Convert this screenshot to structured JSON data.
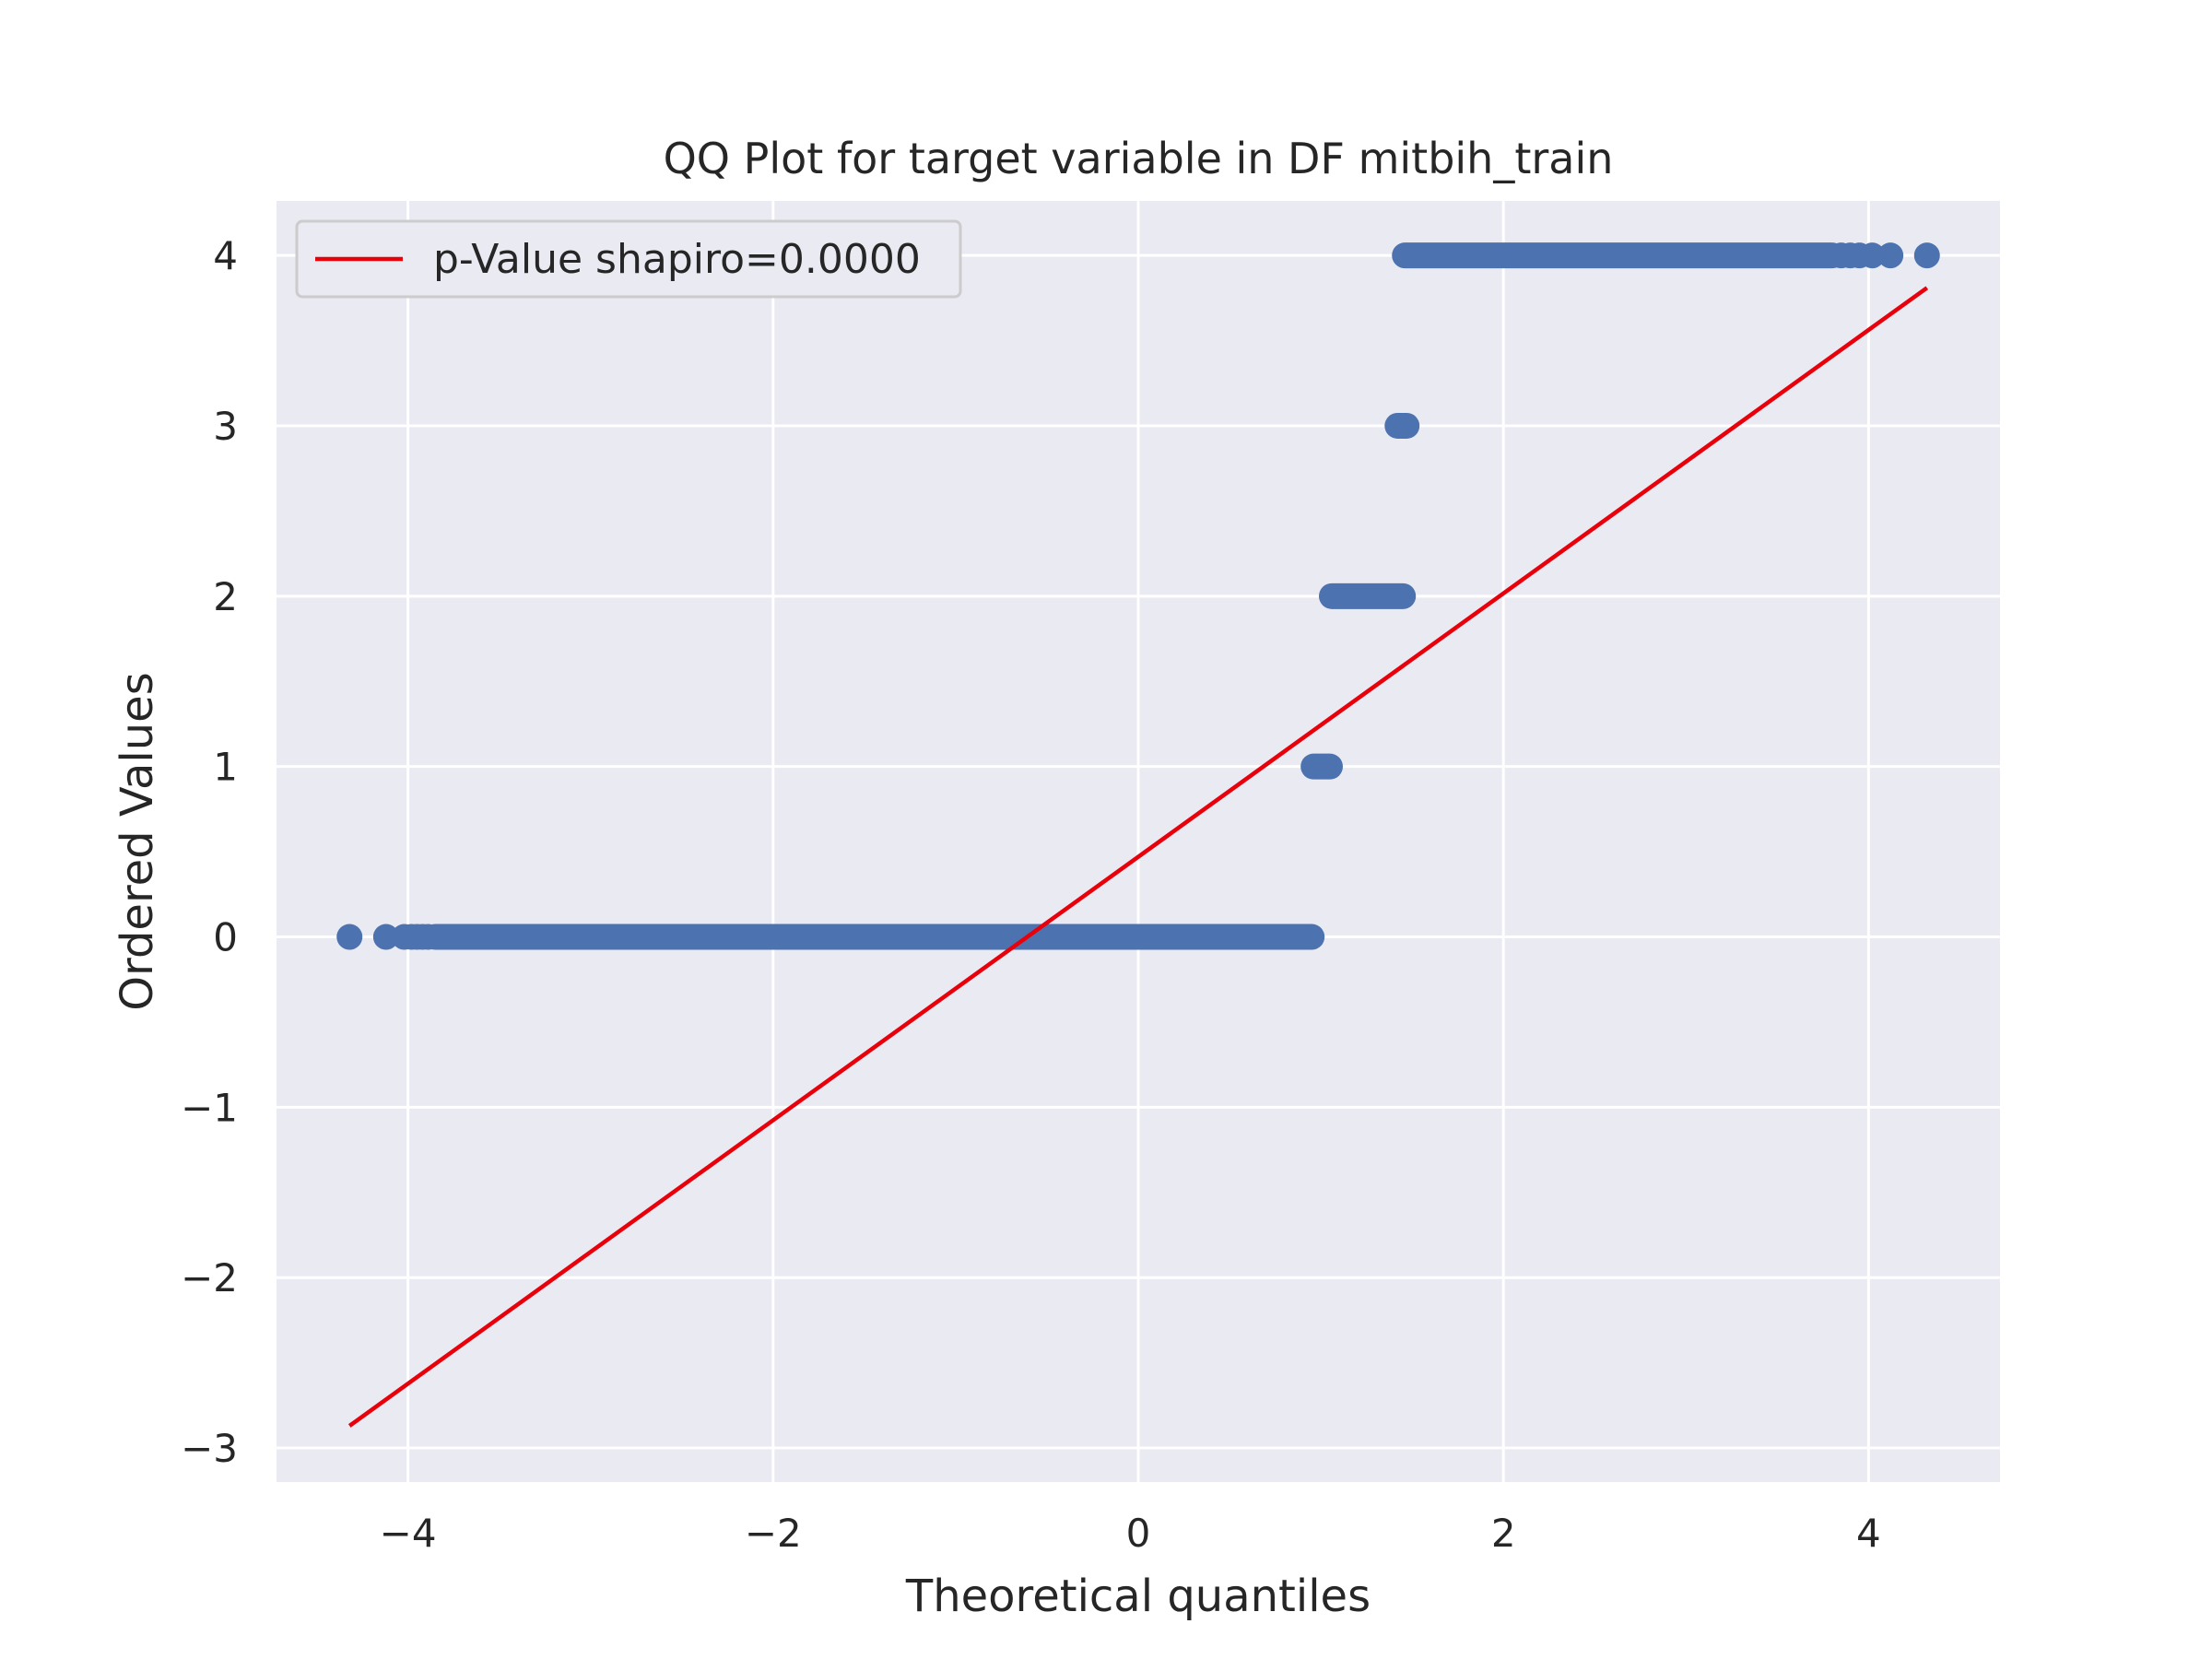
{
  "chart_data": {
    "type": "scatter",
    "title": "QQ Plot for target variable in DF mitbih_train",
    "xlabel": "Theoretical quantiles",
    "ylabel": "Ordered Values",
    "xlim": [
      -4.72,
      4.72
    ],
    "ylim": [
      -3.2,
      4.32
    ],
    "xticks": [
      -4,
      -2,
      0,
      2,
      4
    ],
    "yticks": [
      -3,
      -2,
      -1,
      0,
      1,
      2,
      3,
      4
    ],
    "xtick_labels": [
      "−4",
      "−2",
      "0",
      "2",
      "4"
    ],
    "ytick_labels": [
      "−3",
      "−2",
      "−1",
      "0",
      "1",
      "2",
      "3",
      "4"
    ],
    "grid": true,
    "legend": {
      "position": "upper-left",
      "entries": [
        "p-Value shapiro=0.0000"
      ]
    },
    "colors": {
      "background": "#EAEAF2",
      "grid": "#FFFFFF",
      "points": "#4C72B0",
      "fit_line": "#E8000B"
    },
    "series": [
      {
        "kind": "points",
        "segments": [
          {
            "y": 0,
            "x_from": -3.85,
            "x_to": 0.95,
            "sparse_x": [
              -4.32,
              -4.12,
              -4.02,
              -3.98,
              -3.95,
              -3.92,
              -3.89
            ]
          },
          {
            "y": 1,
            "x_from": 0.96,
            "x_to": 1.05,
            "sparse_x": []
          },
          {
            "y": 2,
            "x_from": 1.06,
            "x_to": 1.45,
            "sparse_x": []
          },
          {
            "y": 3,
            "x_from": 1.42,
            "x_to": 1.47,
            "sparse_x": []
          },
          {
            "y": 4,
            "x_from": 1.46,
            "x_to": 3.8,
            "sparse_x": [
              3.85,
              3.9,
              3.95,
              4.02,
              4.12,
              4.32
            ]
          }
        ]
      },
      {
        "name": "p-Value shapiro=0.0000",
        "kind": "line",
        "x": [
          -4.32,
          4.32
        ],
        "y": [
          -2.87,
          3.81
        ]
      }
    ]
  }
}
